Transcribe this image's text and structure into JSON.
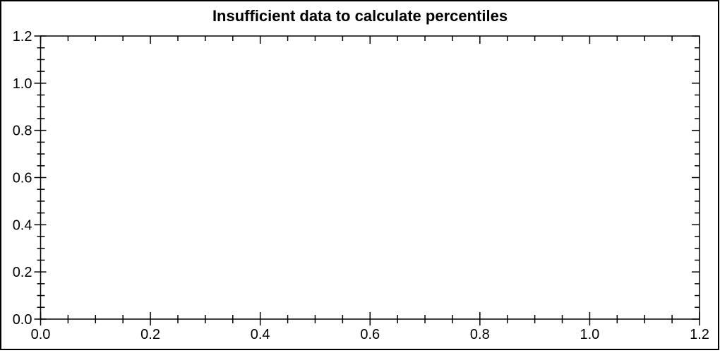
{
  "chart_data": {
    "type": "scatter",
    "title": "Insufficient data to calculate percentiles",
    "subtitle": "",
    "series": [],
    "points": [],
    "xlabel": "",
    "ylabel": "",
    "xlim": [
      0,
      1.2
    ],
    "ylim": [
      0,
      1.2
    ],
    "x_major_ticks": [
      0.0,
      0.2,
      0.4,
      0.6,
      0.8,
      1.0,
      1.2
    ],
    "y_major_ticks": [
      0.0,
      0.2,
      0.4,
      0.6,
      0.8,
      1.0,
      1.2
    ],
    "x_tick_labels": [
      "0.0",
      "0.2",
      "0.4",
      "0.6",
      "0.8",
      "1.0",
      "1.2"
    ],
    "y_tick_labels": [
      "0.0",
      "0.2",
      "0.4",
      "0.6",
      "0.8",
      "1.0",
      "1.2"
    ],
    "minor_tick_step": 0.05,
    "grid": false,
    "legend": null,
    "frame": "box",
    "colors": {
      "axis": "#000000",
      "text": "#000000",
      "background": "#ffffff",
      "border": "#000000"
    }
  }
}
